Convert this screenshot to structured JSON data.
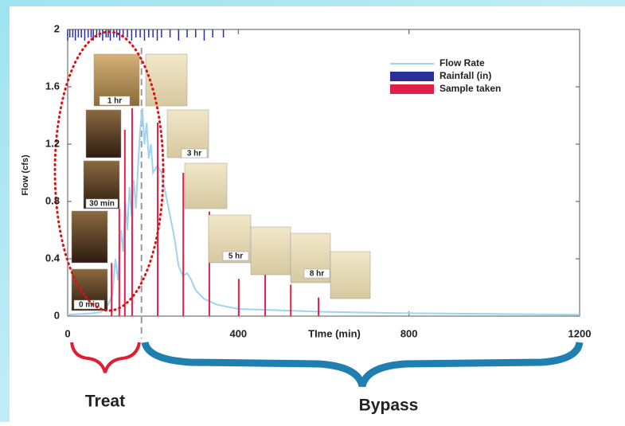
{
  "chart_data": {
    "type": "line",
    "xlabel": "TIme (min)",
    "ylabel": "Flow (cfs)",
    "xlim": [
      0,
      1200
    ],
    "xticks": [
      0,
      400,
      800,
      1200
    ],
    "ylim": [
      0,
      2
    ],
    "yticks": [
      0,
      0.4,
      0.8,
      1.2,
      1.6,
      2
    ],
    "divider_x": 173,
    "series": [
      {
        "name": "Flow Rate",
        "color": "#9fd3f0",
        "x": [
          0,
          60,
          80,
          95,
          105,
          112,
          118,
          125,
          130,
          135,
          140,
          145,
          150,
          155,
          160,
          165,
          170,
          175,
          180,
          185,
          190,
          195,
          200,
          210,
          220,
          230,
          240,
          250,
          260,
          270,
          280,
          290,
          300,
          320,
          350,
          400,
          500,
          600,
          800,
          1000,
          1200
        ],
        "values": [
          0.01,
          0.02,
          0.03,
          0.08,
          0.15,
          0.4,
          0.25,
          0.6,
          0.45,
          0.8,
          0.6,
          0.9,
          0.7,
          0.95,
          0.75,
          1.05,
          1.3,
          1.45,
          1.2,
          1.35,
          1.1,
          1.2,
          1.0,
          1.05,
          1.0,
          0.85,
          0.7,
          0.55,
          0.35,
          0.28,
          0.3,
          0.25,
          0.18,
          0.12,
          0.08,
          0.05,
          0.04,
          0.03,
          0.02,
          0.015,
          0.01
        ]
      },
      {
        "name": "Rainfall (in)",
        "color": "#2a2f9a",
        "x": [
          0,
          5,
          12,
          18,
          25,
          32,
          40,
          48,
          55,
          60,
          68,
          75,
          82,
          90,
          95,
          100,
          108,
          115,
          122,
          130,
          140,
          150,
          160,
          170,
          180,
          190,
          200,
          210,
          220,
          240,
          260,
          280,
          300,
          320,
          340,
          365
        ]
      },
      {
        "name": "Sample taken",
        "color": "#e0204a",
        "x": [
          103,
          121,
          134,
          151,
          211,
          271,
          332,
          401,
          463,
          523,
          588
        ],
        "values": [
          0.37,
          0.75,
          1.3,
          1.45,
          1.35,
          1.0,
          0.73,
          0.26,
          0.3,
          0.22,
          0.13
        ]
      }
    ],
    "photo_labels": [
      "0 min",
      "30 min",
      "1 hr",
      "3 hr",
      "5 hr",
      "8 hr"
    ],
    "phases": [
      "Treat",
      "Bypass"
    ]
  }
}
